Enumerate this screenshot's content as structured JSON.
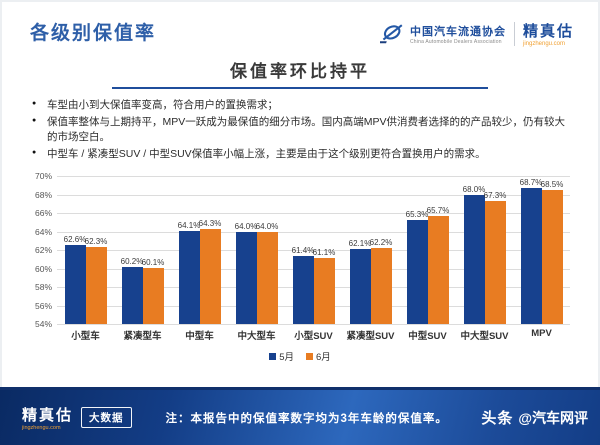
{
  "header": {
    "page_title": "各级别保值率",
    "logo": {
      "org_name": "中国汽车流通协会",
      "org_subtitle": "China Automobile Dealers Association",
      "brand_name": "精真估",
      "brand_subtitle": "jingzhengu.com"
    }
  },
  "slide": {
    "title": "保值率环比持平",
    "bullets": [
      "车型由小到大保值率变高，符合用户的置换需求；",
      "保值率整体与上期持平，MPV一跃成为最保值的细分市场。国内高端MPV供消费者选择的的产品较少，仍有较大的市场空白。",
      "中型车 / 紧凑型SUV / 中型SUV保值率小幅上涨，主要是由于这个级别更符合置换用户的需求。"
    ]
  },
  "chart_data": {
    "type": "bar",
    "categories": [
      "小型车",
      "紧凑型车",
      "中型车",
      "中大型车",
      "小型SUV",
      "紧凑型SUV",
      "中型SUV",
      "中大型SUV",
      "MPV"
    ],
    "series": [
      {
        "name": "5月",
        "color": "#17418e",
        "values": [
          62.6,
          60.2,
          64.1,
          64.0,
          61.4,
          62.1,
          65.3,
          68.0,
          68.7
        ]
      },
      {
        "name": "6月",
        "color": "#e87c22",
        "values": [
          62.3,
          60.1,
          64.3,
          64.0,
          61.1,
          62.2,
          65.7,
          67.3,
          68.5
        ]
      }
    ],
    "title": "保值率环比持平",
    "xlabel": "",
    "ylabel": "",
    "ylim": [
      54,
      70
    ],
    "ytick_step": 2,
    "ytick_suffix": "%",
    "value_label_suffix": "%",
    "grid": true,
    "legend_position": "bottom"
  },
  "footer": {
    "logo_brand": "精真估",
    "logo_sub": "jingzhengu.com",
    "logo_badge": "大数据",
    "note": "注：本报告中的保值率数字均为3年车龄的保值率。",
    "watermark_bold": "头条",
    "watermark_text": "@汽车网评"
  },
  "colors": {
    "header_blue": "#2e5fa8",
    "underline_blue": "#1f4e9c",
    "bar_may": "#17418e",
    "bar_june": "#e87c22",
    "banner_dark": "#0a2a63",
    "banner_light": "#2d68bd",
    "brand_orange": "#f0a032"
  }
}
